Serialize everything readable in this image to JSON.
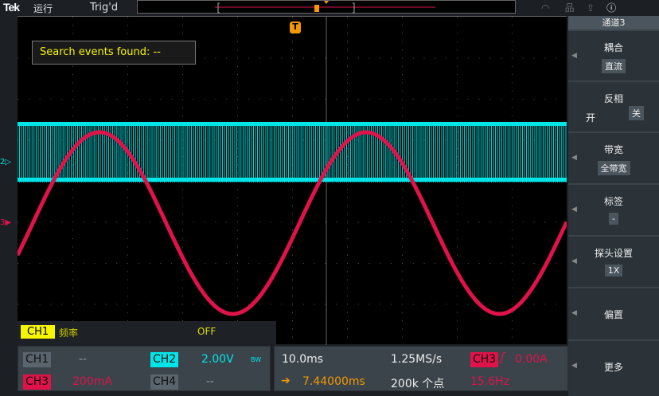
{
  "topbar": {
    "brand": "Tek",
    "run_state": "运行",
    "trigger_state": "Trig'd"
  },
  "menu": {
    "title": "通道3",
    "sections": [
      {
        "label": "耦合",
        "value": "直流"
      },
      {
        "label": "反相",
        "on": "开",
        "off": "关",
        "selected": "关"
      },
      {
        "label": "带宽",
        "value": "全带宽"
      },
      {
        "label": "标签",
        "value": "-"
      },
      {
        "label": "探头设置",
        "value": "1X"
      },
      {
        "label": "偏置"
      },
      {
        "label": "更多"
      }
    ]
  },
  "plot": {
    "search_text": "Search events found:  --",
    "ch2_marker": "2",
    "ch3_marker": "3",
    "trigger_marker": "T"
  },
  "measurement": {
    "channel": "CH1",
    "type": "频率",
    "value": "OFF"
  },
  "channels": {
    "ch1": {
      "label": "CH1",
      "scale": "--"
    },
    "ch2": {
      "label": "CH2",
      "scale": "2.00V",
      "bw": "BW"
    },
    "ch3": {
      "label": "CH3",
      "scale": "200mA"
    },
    "ch4": {
      "label": "CH4",
      "scale": "--"
    }
  },
  "horizontal": {
    "timebase": "10.0ms",
    "sample_rate": "1.25MS/s",
    "position": "7.44000ms",
    "record_length": "200k 个点"
  },
  "trigger": {
    "source": "CH3",
    "slope": "rising",
    "level": "0.00A",
    "frequency": "15.6Hz"
  },
  "colors": {
    "ch1": "#f5f500",
    "ch2": "#00e5e8",
    "ch3": "#e0124a",
    "ch4": "#5a646c",
    "trigger": "#f39800"
  }
}
